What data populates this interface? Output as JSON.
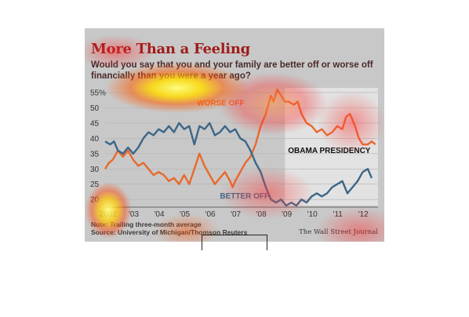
{
  "figure": {
    "title": "More Than a Feeling",
    "subtitle": "Would you say that you and your family are better off or worse off financially than you were a year ago?",
    "note": "Note: Trailing three-month average",
    "source": "Source: University of Michigan/Thomson Reuters",
    "credit": "The Wall Street Journal"
  },
  "chart_data": {
    "type": "line",
    "ylim": [
      18,
      56
    ],
    "yticks": [
      20,
      25,
      30,
      35,
      40,
      45,
      50,
      55
    ],
    "ytick_labels": [
      "20",
      "25",
      "30",
      "35",
      "40",
      "45",
      "50",
      "55%"
    ],
    "xlim": [
      2002.0,
      2012.7
    ],
    "xticks": [
      2002.0,
      2003.0,
      2004.0,
      2005.0,
      2006.0,
      2007.0,
      2008.0,
      2009.0,
      2010.0,
      2011.0,
      2012.0
    ],
    "xtick_labels": [
      "2002",
      "'03",
      "'04",
      "'05",
      "'06",
      "'07",
      "'08",
      "'09",
      "'10",
      "'11",
      "'12"
    ],
    "shaded_region": {
      "label": "OBAMA PRESIDENCY",
      "start": 2009.05,
      "end": 2012.7
    },
    "series": [
      {
        "name": "WORSE OFF",
        "color": "#e8692a",
        "points": [
          [
            2002.0,
            30
          ],
          [
            2002.15,
            32
          ],
          [
            2002.3,
            33
          ],
          [
            2002.5,
            36
          ],
          [
            2002.7,
            34
          ],
          [
            2002.9,
            36
          ],
          [
            2003.1,
            33
          ],
          [
            2003.3,
            31
          ],
          [
            2003.5,
            32
          ],
          [
            2003.7,
            30
          ],
          [
            2003.9,
            28
          ],
          [
            2004.1,
            29
          ],
          [
            2004.3,
            28
          ],
          [
            2004.5,
            26
          ],
          [
            2004.7,
            27
          ],
          [
            2004.9,
            25
          ],
          [
            2005.1,
            28
          ],
          [
            2005.3,
            25
          ],
          [
            2005.5,
            30
          ],
          [
            2005.7,
            35
          ],
          [
            2005.9,
            31
          ],
          [
            2006.1,
            28
          ],
          [
            2006.3,
            25
          ],
          [
            2006.5,
            27
          ],
          [
            2006.7,
            29
          ],
          [
            2006.9,
            26
          ],
          [
            2007.0,
            24
          ],
          [
            2007.1,
            26
          ],
          [
            2007.3,
            29
          ],
          [
            2007.5,
            32
          ],
          [
            2007.7,
            34
          ],
          [
            2007.9,
            38
          ],
          [
            2008.1,
            44
          ],
          [
            2008.3,
            48
          ],
          [
            2008.5,
            54
          ],
          [
            2008.6,
            52
          ],
          [
            2008.75,
            56
          ],
          [
            2008.9,
            54
          ],
          [
            2009.05,
            52
          ],
          [
            2009.2,
            52
          ],
          [
            2009.4,
            51
          ],
          [
            2009.55,
            52
          ],
          [
            2009.7,
            48
          ],
          [
            2009.9,
            45
          ],
          [
            2010.1,
            44
          ],
          [
            2010.3,
            42
          ],
          [
            2010.5,
            43
          ],
          [
            2010.7,
            41
          ],
          [
            2010.9,
            42
          ],
          [
            2011.1,
            44
          ],
          [
            2011.3,
            43
          ],
          [
            2011.45,
            47
          ],
          [
            2011.6,
            48
          ],
          [
            2011.8,
            44
          ],
          [
            2011.95,
            40
          ],
          [
            2012.1,
            38
          ],
          [
            2012.3,
            38
          ],
          [
            2012.45,
            39
          ],
          [
            2012.6,
            38
          ]
        ]
      },
      {
        "name": "BETTER OFF",
        "color": "#3c6687",
        "points": [
          [
            2002.0,
            39
          ],
          [
            2002.2,
            38
          ],
          [
            2002.35,
            39
          ],
          [
            2002.5,
            36
          ],
          [
            2002.7,
            35
          ],
          [
            2002.9,
            37
          ],
          [
            2003.1,
            35
          ],
          [
            2003.3,
            37
          ],
          [
            2003.5,
            40
          ],
          [
            2003.7,
            42
          ],
          [
            2003.9,
            41
          ],
          [
            2004.1,
            43
          ],
          [
            2004.3,
            42
          ],
          [
            2004.5,
            44
          ],
          [
            2004.7,
            42
          ],
          [
            2004.9,
            45
          ],
          [
            2005.1,
            43
          ],
          [
            2005.3,
            44
          ],
          [
            2005.5,
            38
          ],
          [
            2005.7,
            44
          ],
          [
            2005.9,
            43
          ],
          [
            2006.1,
            45
          ],
          [
            2006.3,
            41
          ],
          [
            2006.5,
            42
          ],
          [
            2006.7,
            44
          ],
          [
            2006.9,
            42
          ],
          [
            2007.1,
            43
          ],
          [
            2007.3,
            40
          ],
          [
            2007.5,
            39
          ],
          [
            2007.7,
            36
          ],
          [
            2007.9,
            32
          ],
          [
            2008.1,
            29
          ],
          [
            2008.3,
            24
          ],
          [
            2008.5,
            20
          ],
          [
            2008.7,
            19
          ],
          [
            2008.9,
            20
          ],
          [
            2009.1,
            18
          ],
          [
            2009.3,
            19
          ],
          [
            2009.5,
            18
          ],
          [
            2009.7,
            20
          ],
          [
            2009.9,
            19
          ],
          [
            2010.1,
            21
          ],
          [
            2010.3,
            22
          ],
          [
            2010.5,
            21
          ],
          [
            2010.7,
            22
          ],
          [
            2010.9,
            24
          ],
          [
            2011.1,
            25
          ],
          [
            2011.3,
            26
          ],
          [
            2011.5,
            22
          ],
          [
            2011.7,
            24
          ],
          [
            2011.9,
            26
          ],
          [
            2012.1,
            29
          ],
          [
            2012.3,
            30
          ],
          [
            2012.45,
            27
          ]
        ]
      }
    ],
    "annotations": [
      {
        "text": "WORSE OFF",
        "color": "#e8692a"
      },
      {
        "text": "BETTER OFF",
        "color": "#3c6687"
      }
    ]
  }
}
